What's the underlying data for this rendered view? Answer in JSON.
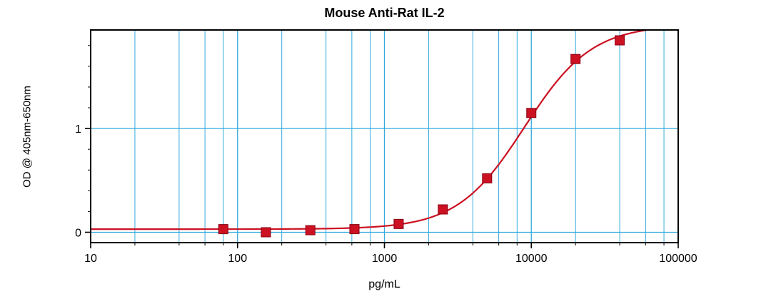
{
  "chart_data": {
    "type": "line",
    "title": "Mouse Anti-Rat IL-2",
    "xlabel": "pg/mL",
    "ylabel": "OD @ 405nm-650nm",
    "xscale": "log",
    "xlim": [
      10,
      100000
    ],
    "ylim": [
      -0.1,
      1.95
    ],
    "x_ticks": [
      10,
      100,
      1000,
      10000,
      100000
    ],
    "x_tick_labels": [
      "10",
      "100",
      "1000",
      "10000",
      "100000"
    ],
    "y_ticks": [
      0,
      1
    ],
    "y_tick_labels": [
      "0",
      "1"
    ],
    "y_minor_ticks": [
      0.2,
      0.4,
      0.6,
      0.8,
      1.2,
      1.4,
      1.6,
      1.8
    ],
    "grid": {
      "vertical_decades": [
        100,
        1000,
        10000
      ],
      "minor_multiples": [
        2,
        4,
        6,
        8
      ],
      "horizontal_lines": [
        0,
        1
      ]
    },
    "points": {
      "x": [
        80,
        156,
        313,
        625,
        1250,
        2500,
        5000,
        10000,
        20000,
        40000
      ],
      "y": [
        0.03,
        0.0,
        0.02,
        0.03,
        0.08,
        0.22,
        0.52,
        1.15,
        1.67,
        1.85
      ]
    },
    "fit": {
      "model": "4PL",
      "A": 0.03,
      "B": 1.9,
      "C": 9000,
      "D": 2.0
    },
    "colors": {
      "grid": "#33AADD",
      "curve": "#CC1122",
      "marker_fill": "#CC1122",
      "marker_edge": "#880011",
      "axis": "#000000"
    },
    "legend": "none",
    "marker": "square"
  }
}
